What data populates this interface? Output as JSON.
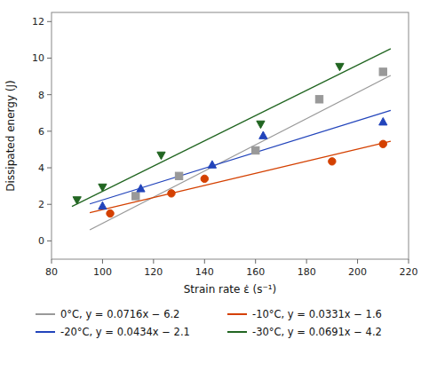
{
  "chart_data": {
    "type": "scatter",
    "xlabel": "Strain rate ε̇ (s⁻¹)",
    "ylabel": "Dissipated energy (J)",
    "xlim": [
      80,
      220
    ],
    "ylim": [
      -1,
      12.5
    ],
    "xticks": [
      80,
      100,
      120,
      140,
      160,
      180,
      200,
      220
    ],
    "yticks": [
      0,
      2,
      4,
      6,
      8,
      10,
      12
    ],
    "grid": false,
    "legend": "bottom",
    "series": [
      {
        "name": "0°C, y = 0.0716x − 6.2",
        "color": "#999999",
        "marker": "square",
        "x": [
          113,
          130,
          160,
          185,
          210
        ],
        "values": [
          2.45,
          3.55,
          4.95,
          7.75,
          9.25
        ],
        "fit_x": [
          95,
          213
        ],
        "fit_values": [
          0.602,
          9.0508
        ]
      },
      {
        "name": "-10°C, y = 0.0331x − 1.6",
        "color": "#d44000",
        "marker": "circle",
        "x": [
          103,
          127,
          140,
          190,
          210
        ],
        "values": [
          1.5,
          2.6,
          3.4,
          4.35,
          5.3
        ],
        "fit_x": [
          95,
          213
        ],
        "fit_values": [
          1.5445,
          5.4503
        ]
      },
      {
        "name": "-20°C, y = 0.0434x − 2.1",
        "color": "#2244bb",
        "marker": "triangle-up",
        "x": [
          100,
          115,
          143,
          163,
          210
        ],
        "values": [
          1.9,
          2.85,
          4.15,
          5.75,
          6.5
        ],
        "fit_x": [
          95,
          213
        ],
        "fit_values": [
          2.023,
          7.1442
        ]
      },
      {
        "name": "-30°C, y = 0.0691x − 4.2",
        "color": "#226622",
        "marker": "triangle-down",
        "x": [
          90,
          100,
          123,
          162,
          193
        ],
        "values": [
          2.25,
          2.95,
          4.7,
          6.4,
          9.55
        ],
        "fit_x": [
          88,
          213
        ],
        "fit_values": [
          1.8808,
          10.5183
        ]
      }
    ]
  }
}
